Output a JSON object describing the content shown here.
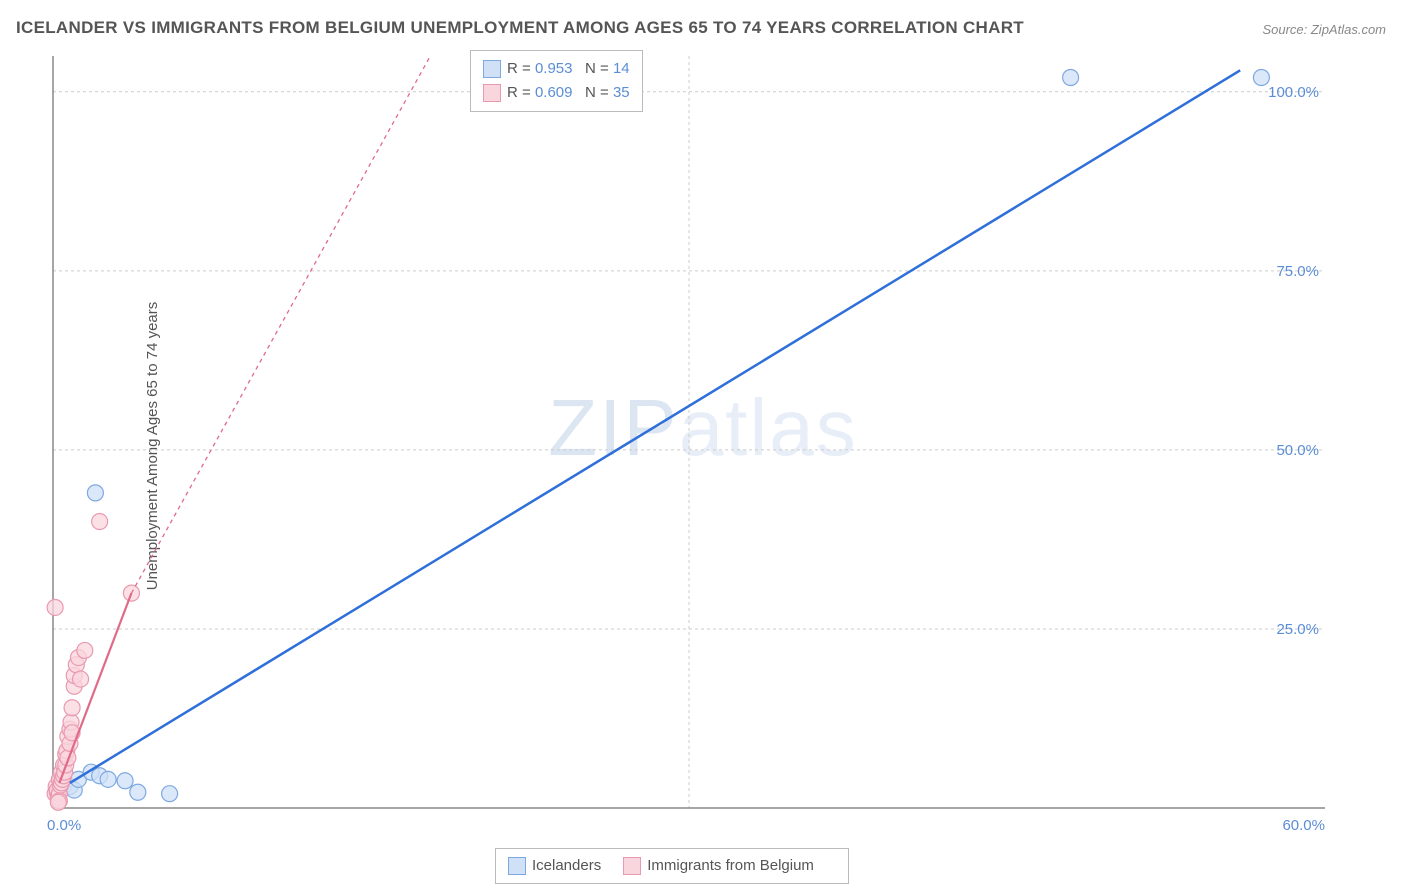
{
  "title": "ICELANDER VS IMMIGRANTS FROM BELGIUM UNEMPLOYMENT AMONG AGES 65 TO 74 YEARS CORRELATION CHART",
  "source": "Source: ZipAtlas.com",
  "ylabel": "Unemployment Among Ages 65 to 74 years",
  "watermark_a": "ZIP",
  "watermark_b": "atlas",
  "chart": {
    "type": "scatter",
    "xlim": [
      0,
      60
    ],
    "ylim": [
      0,
      105
    ],
    "xtick_labels": [
      {
        "v": 0,
        "t": "0.0%"
      },
      {
        "v": 60,
        "t": "60.0%"
      }
    ],
    "ytick_labels": [
      {
        "v": 25,
        "t": "25.0%"
      },
      {
        "v": 50,
        "t": "50.0%"
      },
      {
        "v": 75,
        "t": "75.0%"
      },
      {
        "v": 100,
        "t": "100.0%"
      }
    ],
    "grid_y": [
      25,
      50,
      75,
      100
    ],
    "grid_x": [
      30
    ],
    "background": "#ffffff",
    "grid_color": "#cccccc",
    "axis_color": "#888888",
    "series": [
      {
        "name": "Icelanders",
        "color_fill": "#cfe0f7",
        "color_stroke": "#7ea8e0",
        "line_color": "#2e6fd9",
        "line_width": 2.5,
        "line_dash": "none",
        "marker_r": 8,
        "R": "0.953",
        "N": "14",
        "points": [
          {
            "x": 0.4,
            "y": 4.2
          },
          {
            "x": 0.5,
            "y": 3.1
          },
          {
            "x": 0.8,
            "y": 3.0
          },
          {
            "x": 1.0,
            "y": 2.5
          },
          {
            "x": 1.2,
            "y": 4.0
          },
          {
            "x": 1.8,
            "y": 5.0
          },
          {
            "x": 2.2,
            "y": 4.5
          },
          {
            "x": 2.6,
            "y": 4.0
          },
          {
            "x": 3.4,
            "y": 3.8
          },
          {
            "x": 4.0,
            "y": 2.2
          },
          {
            "x": 5.5,
            "y": 2.0
          },
          {
            "x": 2.0,
            "y": 44.0
          },
          {
            "x": 48.0,
            "y": 102.0
          },
          {
            "x": 57.0,
            "y": 102.0
          }
        ],
        "trend": {
          "x1": 0.8,
          "y1": 3.5,
          "x2": 56,
          "y2": 103
        }
      },
      {
        "name": "Immigrants from Belgium",
        "color_fill": "#f9d6de",
        "color_stroke": "#e99ab0",
        "line_color": "#e06a88",
        "line_width": 2.2,
        "line_dash": "4,4",
        "marker_r": 8,
        "R": "0.609",
        "N": "35",
        "points": [
          {
            "x": 0.1,
            "y": 2.0
          },
          {
            "x": 0.15,
            "y": 3.0
          },
          {
            "x": 0.2,
            "y": 2.2
          },
          {
            "x": 0.2,
            "y": 2.5
          },
          {
            "x": 0.25,
            "y": 1.5
          },
          {
            "x": 0.3,
            "y": 2.0
          },
          {
            "x": 0.3,
            "y": 4.0
          },
          {
            "x": 0.35,
            "y": 3.2
          },
          {
            "x": 0.4,
            "y": 3.5
          },
          {
            "x": 0.4,
            "y": 5.0
          },
          {
            "x": 0.45,
            "y": 4.0
          },
          {
            "x": 0.5,
            "y": 4.5
          },
          {
            "x": 0.5,
            "y": 6.0
          },
          {
            "x": 0.55,
            "y": 5.0
          },
          {
            "x": 0.6,
            "y": 6.0
          },
          {
            "x": 0.6,
            "y": 7.5
          },
          {
            "x": 0.65,
            "y": 8.0
          },
          {
            "x": 0.7,
            "y": 7.0
          },
          {
            "x": 0.7,
            "y": 10.0
          },
          {
            "x": 0.8,
            "y": 9.0
          },
          {
            "x": 0.8,
            "y": 11.0
          },
          {
            "x": 0.85,
            "y": 12.0
          },
          {
            "x": 0.9,
            "y": 14.0
          },
          {
            "x": 0.9,
            "y": 10.5
          },
          {
            "x": 1.0,
            "y": 17.0
          },
          {
            "x": 1.0,
            "y": 18.5
          },
          {
            "x": 1.1,
            "y": 20.0
          },
          {
            "x": 1.2,
            "y": 21.0
          },
          {
            "x": 1.3,
            "y": 18.0
          },
          {
            "x": 1.5,
            "y": 22.0
          },
          {
            "x": 0.1,
            "y": 28.0
          },
          {
            "x": 3.7,
            "y": 30.0
          },
          {
            "x": 2.2,
            "y": 40.0
          },
          {
            "x": 0.3,
            "y": 1.0
          },
          {
            "x": 0.25,
            "y": 0.8
          }
        ],
        "trend_solid": {
          "x1": 0.3,
          "y1": 3.5,
          "x2": 3.7,
          "y2": 30
        },
        "trend": {
          "x1": 3.7,
          "y1": 30,
          "x2": 17.8,
          "y2": 105
        }
      }
    ]
  },
  "legend_top": {
    "rows": [
      {
        "swatch_fill": "#cfe0f7",
        "swatch_stroke": "#7ea8e0",
        "R": "0.953",
        "N": "14"
      },
      {
        "swatch_fill": "#f9d6de",
        "swatch_stroke": "#e99ab0",
        "R": "0.609",
        "N": "35"
      }
    ]
  },
  "legend_bottom": {
    "items": [
      {
        "swatch_fill": "#cfe0f7",
        "swatch_stroke": "#7ea8e0",
        "label": "Icelanders"
      },
      {
        "swatch_fill": "#f9d6de",
        "swatch_stroke": "#e99ab0",
        "label": "Immigrants from Belgium"
      }
    ]
  }
}
